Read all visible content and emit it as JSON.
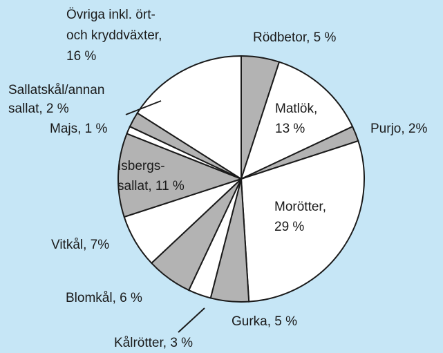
{
  "chart_data": {
    "type": "pie",
    "labels": [
      [
        "Rödbetor, 5 %"
      ],
      [
        "Matlök,",
        "13 %"
      ],
      [
        "Purjo, 2%"
      ],
      [
        "Morötter,",
        "29 %"
      ],
      [
        "Gurka, 5 %"
      ],
      [
        "Kålrötter, 3 %"
      ],
      [
        "Blomkål, 6 %"
      ],
      [
        "Vitkål, 7%"
      ],
      [
        "Isbergs-",
        "sallat, 11 %"
      ],
      [
        "Majs, 1 %"
      ],
      [
        "Sallatskål/annan",
        "sallat, 2 %"
      ],
      [
        "Övriga inkl. ört-",
        "och kryddväxter,",
        "16 %"
      ]
    ],
    "values": [
      5,
      13,
      2,
      29,
      5,
      3,
      6,
      7,
      11,
      1,
      2,
      16
    ],
    "colors": [
      "#b3b3b3",
      "#ffffff",
      "#b3b3b3",
      "#ffffff",
      "#b3b3b3",
      "#ffffff",
      "#b3b3b3",
      "#ffffff",
      "#b3b3b3",
      "#ffffff",
      "#b3b3b3",
      "#ffffff"
    ]
  }
}
